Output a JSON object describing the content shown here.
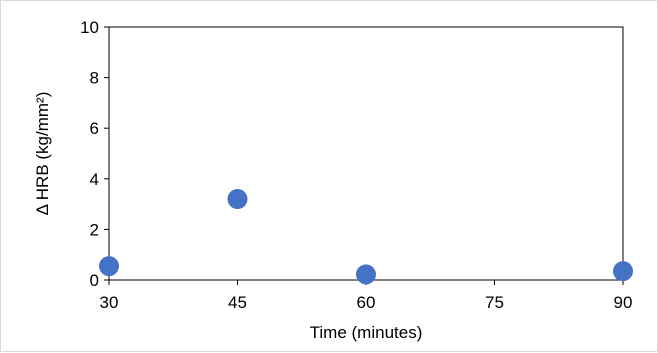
{
  "chart_data": {
    "type": "scatter",
    "title": "",
    "xlabel": "Time (minutes)",
    "ylabel": "Δ HRB (kg/mm²)",
    "xlim": [
      30,
      90
    ],
    "ylim": [
      0,
      10
    ],
    "xticks": [
      30,
      45,
      60,
      75,
      90
    ],
    "yticks": [
      0,
      2,
      4,
      6,
      8,
      10
    ],
    "grid": false,
    "legend": "none",
    "marker_color": "#4472c4",
    "series": [
      {
        "x": [
          30,
          45,
          60,
          90
        ],
        "y": [
          0.55,
          3.2,
          0.22,
          0.35
        ]
      }
    ]
  }
}
